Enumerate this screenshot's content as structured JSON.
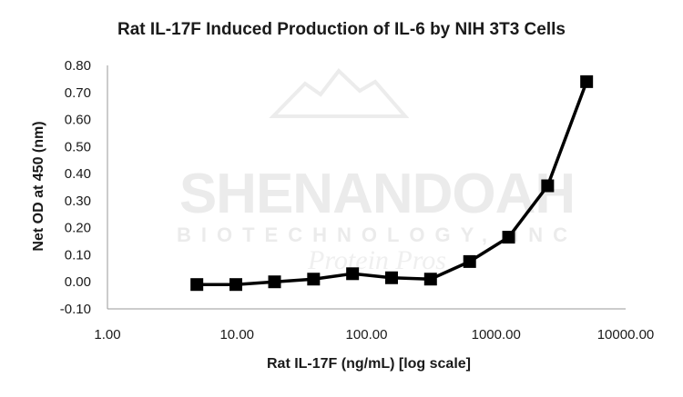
{
  "chart_data": {
    "type": "line",
    "title": "Rat IL-17F Induced Production of IL-6 by NIH 3T3 Cells",
    "xlabel": "Rat IL-17F (ng/mL) [log scale]",
    "ylabel": "Net OD at 450 (nm)",
    "x_scale": "log",
    "xlim": [
      1,
      10000
    ],
    "ylim": [
      -0.1,
      0.8
    ],
    "x_ticks": [
      1,
      10,
      100,
      1000,
      10000
    ],
    "x_tick_labels": [
      "1.00",
      "10.00",
      "100.00",
      "1000.00",
      "10000.00"
    ],
    "y_ticks": [
      -0.1,
      0,
      0.1,
      0.2,
      0.3,
      0.4,
      0.5,
      0.6,
      0.7,
      0.8
    ],
    "y_tick_labels": [
      "-0.10",
      "0.00",
      "0.10",
      "0.20",
      "0.30",
      "0.40",
      "0.50",
      "0.60",
      "0.70",
      "0.80"
    ],
    "grid": false,
    "legend": "none",
    "marker": "square",
    "line_color": "#000000",
    "series": [
      {
        "x": [
          4.9,
          9.8,
          19.5,
          39,
          78,
          156,
          312,
          625,
          1250,
          2500,
          5000
        ],
        "y": [
          -0.01,
          -0.01,
          0.0,
          0.01,
          0.03,
          0.015,
          0.01,
          0.075,
          0.165,
          0.355,
          0.74
        ]
      }
    ]
  },
  "watermark": {
    "line1": "SHENANDOAH",
    "line2": "BIOTECHNOLOGY, INC",
    "line3": "Protein Pros"
  }
}
